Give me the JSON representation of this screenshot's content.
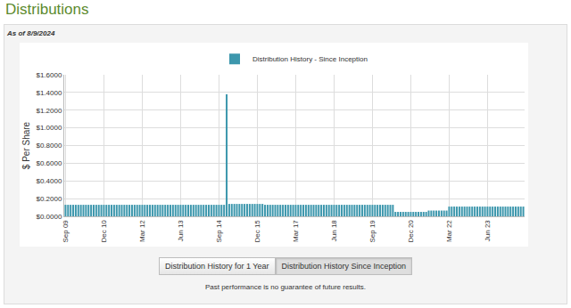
{
  "chart_data": {
    "type": "bar",
    "categories": [
      "Sep 09",
      null,
      null,
      null,
      null,
      null,
      null,
      null,
      null,
      null,
      null,
      null,
      null,
      null,
      null,
      "Dec 10",
      null,
      null,
      null,
      null,
      null,
      null,
      null,
      null,
      null,
      null,
      null,
      null,
      null,
      null,
      "Mar 12",
      null,
      null,
      null,
      null,
      null,
      null,
      null,
      null,
      null,
      null,
      null,
      null,
      null,
      null,
      "Jun 13",
      null,
      null,
      null,
      null,
      null,
      null,
      null,
      null,
      null,
      null,
      null,
      null,
      null,
      null,
      "Sep 14",
      null,
      null,
      null,
      null,
      null,
      null,
      null,
      null,
      null,
      null,
      null,
      null,
      null,
      null,
      "Dec 15",
      null,
      null,
      null,
      null,
      null,
      null,
      null,
      null,
      null,
      null,
      null,
      null,
      null,
      null,
      "Mar 17",
      null,
      null,
      null,
      null,
      null,
      null,
      null,
      null,
      null,
      null,
      null,
      null,
      null,
      null,
      "Jun 18",
      null,
      null,
      null,
      null,
      null,
      null,
      null,
      null,
      null,
      null,
      null,
      null,
      null,
      null,
      "Sep 19",
      null,
      null,
      null,
      null,
      null,
      null,
      null,
      null,
      null,
      null,
      null,
      null,
      null,
      null,
      "Dec 20",
      null,
      null,
      null,
      null,
      null,
      null,
      null,
      null,
      null,
      null,
      null,
      null,
      null,
      null,
      "Mar 22",
      null,
      null,
      null,
      null,
      null,
      null,
      null,
      null,
      null,
      null,
      null,
      null,
      null,
      null,
      "Jun 23",
      null,
      null,
      null,
      null,
      null,
      null,
      null,
      null,
      null,
      null,
      null,
      null,
      null,
      null
    ],
    "series": [
      {
        "name": "Distribution History - Since Inception",
        "color": "#3d97ad",
        "values": [
          0.13,
          0.13,
          0.13,
          0.13,
          0.13,
          0.13,
          0.13,
          0.13,
          0.13,
          0.13,
          0.13,
          0.13,
          0.13,
          0.13,
          0.13,
          0.13,
          0.13,
          0.13,
          0.13,
          0.13,
          0.13,
          0.13,
          0.13,
          0.13,
          0.13,
          0.13,
          0.13,
          0.13,
          0.13,
          0.13,
          0.13,
          0.13,
          0.13,
          0.13,
          0.13,
          0.13,
          0.13,
          0.13,
          0.13,
          0.13,
          0.13,
          0.13,
          0.13,
          0.13,
          0.13,
          0.13,
          0.13,
          0.13,
          0.13,
          0.13,
          0.13,
          0.13,
          0.13,
          0.13,
          0.13,
          0.13,
          0.13,
          0.13,
          0.13,
          0.13,
          0.13,
          0.13,
          0.13,
          1.38,
          0.14,
          0.14,
          0.14,
          0.14,
          0.14,
          0.14,
          0.14,
          0.14,
          0.14,
          0.14,
          0.14,
          0.14,
          0.14,
          0.14,
          0.13,
          0.13,
          0.13,
          0.13,
          0.13,
          0.13,
          0.13,
          0.13,
          0.13,
          0.13,
          0.13,
          0.13,
          0.13,
          0.13,
          0.13,
          0.13,
          0.13,
          0.13,
          0.13,
          0.13,
          0.13,
          0.13,
          0.13,
          0.13,
          0.13,
          0.13,
          0.13,
          0.13,
          0.13,
          0.13,
          0.13,
          0.13,
          0.13,
          0.13,
          0.13,
          0.13,
          0.13,
          0.13,
          0.13,
          0.13,
          0.13,
          0.13,
          0.13,
          0.13,
          0.13,
          0.13,
          0.13,
          0.13,
          0.13,
          0.13,
          0.13,
          0.05,
          0.05,
          0.05,
          0.05,
          0.05,
          0.05,
          0.05,
          0.05,
          0.05,
          0.05,
          0.05,
          0.05,
          0.05,
          0.065,
          0.065,
          0.065,
          0.065,
          0.065,
          0.065,
          0.065,
          0.065,
          0.11,
          0.11,
          0.11,
          0.11,
          0.11,
          0.11,
          0.11,
          0.11,
          0.11,
          0.11,
          0.11,
          0.11,
          0.11,
          0.11,
          0.11,
          0.11,
          0.11,
          0.11,
          0.11,
          0.11,
          0.11,
          0.11,
          0.11,
          0.11,
          0.11,
          0.11,
          0.11,
          0.11,
          0.11,
          0.11
        ]
      }
    ],
    "y_label": "$ Per Share",
    "ylim": [
      0,
      1.6
    ],
    "yticks": [
      {
        "value": 0,
        "label": "$0.0000"
      },
      {
        "value": 0.2,
        "label": "$0.2000"
      },
      {
        "value": 0.4,
        "label": "$0.4000"
      },
      {
        "value": 0.6,
        "label": "$0.6000"
      },
      {
        "value": 0.8,
        "label": "$0.8000"
      },
      {
        "value": 1.0,
        "label": "$1.0000"
      },
      {
        "value": 1.2,
        "label": "$1.2000"
      },
      {
        "value": 1.4,
        "label": "$1.4000"
      },
      {
        "value": 1.6,
        "label": "$1.6000"
      }
    ],
    "grid": true,
    "legend": "top"
  },
  "page": {
    "heading": "Distributions",
    "as_of": "As of 8/9/2024",
    "buttons": [
      "Distribution History for 1 Year",
      "Distribution History Since Inception"
    ],
    "active_button": "Distribution History Since Inception",
    "footnote": "Past performance is no guarantee of future results."
  }
}
